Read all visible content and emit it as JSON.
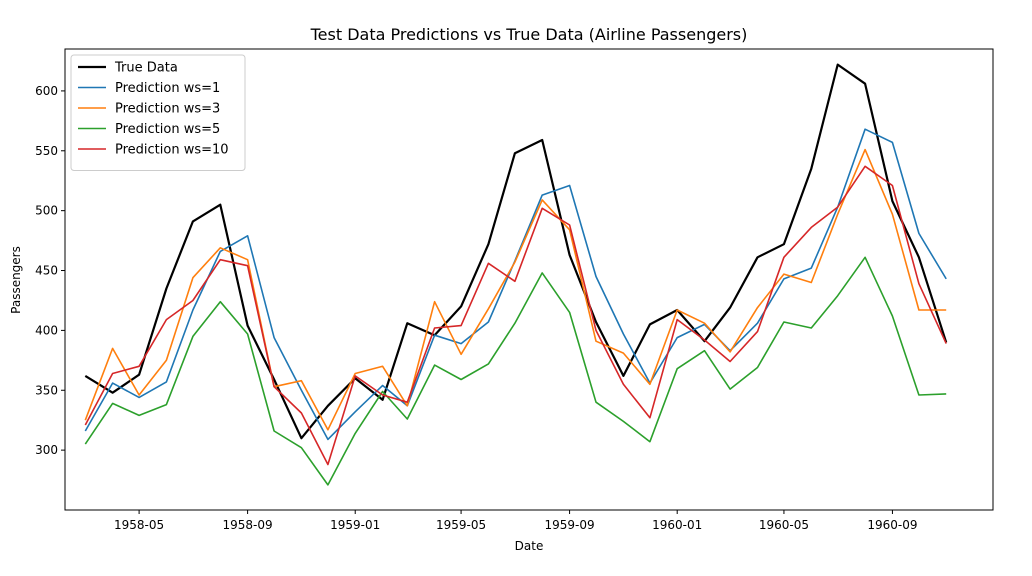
{
  "chart_data": {
    "type": "line",
    "title": "Test Data Predictions vs True Data (Airline Passengers)",
    "xlabel": "Date",
    "ylabel": "Passengers",
    "x": [
      "1958-03",
      "1958-04",
      "1958-05",
      "1958-06",
      "1958-07",
      "1958-08",
      "1958-09",
      "1958-10",
      "1958-11",
      "1958-12",
      "1959-01",
      "1959-02",
      "1959-03",
      "1959-04",
      "1959-05",
      "1959-06",
      "1959-07",
      "1959-08",
      "1959-09",
      "1959-10",
      "1959-11",
      "1959-12",
      "1960-01",
      "1960-02",
      "1960-03",
      "1960-04",
      "1960-05",
      "1960-06",
      "1960-07",
      "1960-08",
      "1960-09",
      "1960-10",
      "1960-11"
    ],
    "xlim": [
      "1958-02-06",
      "1960-12-24"
    ],
    "ylim": [
      250,
      635
    ],
    "x_ticks": [
      "1958-05",
      "1958-09",
      "1959-01",
      "1959-05",
      "1959-09",
      "1960-01",
      "1960-05",
      "1960-09"
    ],
    "y_ticks": [
      300,
      350,
      400,
      450,
      500,
      550,
      600
    ],
    "grid": false,
    "legend_position": "top-left",
    "series": [
      {
        "name": "True Data",
        "color": "#000000",
        "width": 2.2,
        "values": [
          362,
          348,
          363,
          435,
          491,
          505,
          404,
          359,
          310,
          337,
          360,
          342,
          406,
          396,
          420,
          472,
          548,
          559,
          463,
          407,
          362,
          405,
          417,
          391,
          419,
          461,
          472,
          535,
          622,
          606,
          508,
          461,
          390
        ]
      },
      {
        "name": "Prediction ws=1",
        "color": "#1f77b4",
        "width": 1.6,
        "values": [
          316,
          356,
          344,
          357,
          417,
          466,
          479,
          394,
          350,
          309,
          332,
          354,
          337,
          396,
          389,
          407,
          458,
          513,
          521,
          445,
          397,
          356,
          394,
          405,
          383,
          406,
          443,
          452,
          503,
          568,
          557,
          481,
          443
        ]
      },
      {
        "name": "Prediction ws=3",
        "color": "#ff7f0e",
        "width": 1.6,
        "values": [
          325,
          385,
          346,
          375,
          444,
          469,
          459,
          353,
          358,
          317,
          364,
          370,
          337,
          424,
          380,
          418,
          457,
          509,
          484,
          391,
          381,
          355,
          417,
          406,
          382,
          419,
          447,
          440,
          497,
          551,
          497,
          417,
          417
        ]
      },
      {
        "name": "Prediction ws=5",
        "color": "#2ca02c",
        "width": 1.6,
        "values": [
          305,
          339,
          329,
          338,
          395,
          424,
          397,
          316,
          302,
          271,
          314,
          349,
          326,
          371,
          359,
          372,
          406,
          448,
          415,
          340,
          324,
          307,
          368,
          383,
          351,
          369,
          407,
          402,
          429,
          461,
          412,
          346,
          347
        ]
      },
      {
        "name": "Prediction ws=10",
        "color": "#d62728",
        "width": 1.6,
        "values": [
          321,
          364,
          370,
          409,
          425,
          459,
          454,
          353,
          331,
          288,
          362,
          346,
          340,
          402,
          404,
          456,
          441,
          502,
          488,
          400,
          355,
          327,
          409,
          392,
          374,
          399,
          461,
          486,
          503,
          537,
          521,
          439,
          389
        ]
      }
    ]
  }
}
